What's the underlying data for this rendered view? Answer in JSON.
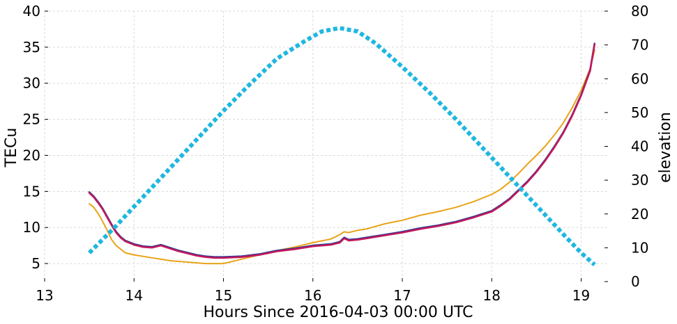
{
  "chart_data": {
    "type": "line",
    "xlabel": "Hours Since 2016-04-03 00:00 UTC",
    "ylabel": "TECu",
    "y2label": "elevation",
    "xlim": [
      13,
      19.3
    ],
    "ylim": [
      2.5,
      40
    ],
    "y2lim": [
      0,
      80
    ],
    "xticks": [
      13,
      14,
      15,
      16,
      17,
      18,
      19
    ],
    "yticks": [
      5,
      10,
      15,
      20,
      25,
      30,
      35,
      40
    ],
    "y2ticks": [
      0,
      10,
      20,
      30,
      40,
      50,
      60,
      70,
      80
    ],
    "grid": true,
    "series": [
      {
        "color": "#e8a317",
        "axis": "left",
        "style": "solid",
        "x": [
          13.5,
          13.55,
          13.6,
          13.65,
          13.7,
          13.75,
          13.8,
          13.85,
          13.9,
          14.0,
          14.1,
          14.2,
          14.3,
          14.4,
          14.5,
          14.6,
          14.7,
          14.8,
          14.9,
          15.0,
          15.2,
          15.4,
          15.6,
          15.8,
          16.0,
          16.2,
          16.3,
          16.35,
          16.4,
          16.5,
          16.6,
          16.8,
          17.0,
          17.2,
          17.4,
          17.6,
          17.8,
          18.0,
          18.1,
          18.2,
          18.3,
          18.4,
          18.5,
          18.6,
          18.7,
          18.8,
          18.9,
          19.0,
          19.1,
          19.15
        ],
        "y": [
          13.3,
          12.8,
          11.9,
          10.8,
          9.6,
          8.3,
          7.5,
          7.0,
          6.5,
          6.2,
          6.0,
          5.8,
          5.6,
          5.4,
          5.3,
          5.2,
          5.1,
          5.0,
          5.0,
          5.0,
          5.6,
          6.2,
          6.8,
          7.3,
          7.9,
          8.4,
          9.0,
          9.4,
          9.3,
          9.6,
          9.8,
          10.5,
          11.0,
          11.7,
          12.2,
          12.8,
          13.6,
          14.6,
          15.3,
          16.3,
          17.5,
          18.8,
          20.0,
          21.3,
          22.8,
          24.5,
          26.6,
          29.0,
          32.0,
          34.6
        ]
      },
      {
        "color": "#1f3a93",
        "axis": "left",
        "style": "solid",
        "x": [
          13.5,
          13.55,
          13.6,
          13.65,
          13.7,
          13.75,
          13.8,
          13.85,
          13.9,
          14.0,
          14.1,
          14.2,
          14.3,
          14.4,
          14.5,
          14.6,
          14.7,
          14.8,
          14.9,
          15.0,
          15.2,
          15.4,
          15.6,
          15.8,
          16.0,
          16.2,
          16.3,
          16.35,
          16.4,
          16.5,
          16.6,
          16.8,
          17.0,
          17.2,
          17.4,
          17.6,
          17.8,
          18.0,
          18.1,
          18.2,
          18.3,
          18.4,
          18.5,
          18.6,
          18.7,
          18.8,
          18.9,
          19.0,
          19.1,
          19.15
        ],
        "y": [
          14.9,
          14.3,
          13.5,
          12.6,
          11.5,
          10.4,
          9.4,
          8.7,
          8.2,
          7.7,
          7.4,
          7.3,
          7.6,
          7.2,
          6.8,
          6.5,
          6.2,
          6.0,
          5.9,
          5.9,
          6.0,
          6.3,
          6.8,
          7.1,
          7.5,
          7.7,
          8.0,
          8.6,
          8.3,
          8.4,
          8.6,
          9.0,
          9.4,
          9.9,
          10.3,
          10.8,
          11.5,
          12.3,
          13.1,
          14.0,
          15.2,
          16.4,
          17.8,
          19.4,
          21.2,
          23.2,
          25.6,
          28.4,
          31.8,
          35.5
        ]
      },
      {
        "color": "#c2185b",
        "axis": "left",
        "style": "solid",
        "x": [
          13.5,
          13.55,
          13.6,
          13.65,
          13.7,
          13.75,
          13.8,
          13.85,
          13.9,
          14.0,
          14.1,
          14.2,
          14.3,
          14.4,
          14.5,
          14.6,
          14.7,
          14.8,
          14.9,
          15.0,
          15.2,
          15.4,
          15.6,
          15.8,
          16.0,
          16.2,
          16.3,
          16.35,
          16.4,
          16.5,
          16.6,
          16.8,
          17.0,
          17.2,
          17.4,
          17.6,
          17.8,
          18.0,
          18.1,
          18.2,
          18.3,
          18.4,
          18.5,
          18.6,
          18.7,
          18.8,
          18.9,
          19.0,
          19.1,
          19.15
        ],
        "y": [
          14.8,
          14.2,
          13.4,
          12.5,
          11.4,
          10.3,
          9.3,
          8.6,
          8.1,
          7.6,
          7.3,
          7.2,
          7.5,
          7.1,
          6.7,
          6.4,
          6.1,
          5.9,
          5.8,
          5.8,
          5.9,
          6.2,
          6.7,
          7.0,
          7.4,
          7.6,
          7.9,
          8.5,
          8.2,
          8.3,
          8.5,
          8.9,
          9.3,
          9.8,
          10.2,
          10.7,
          11.4,
          12.2,
          13.0,
          13.9,
          15.1,
          16.3,
          17.7,
          19.3,
          21.1,
          23.1,
          25.5,
          28.3,
          31.7,
          35.4
        ]
      },
      {
        "color": "#1fb7e0",
        "axis": "right",
        "style": "dotted",
        "x": [
          13.5,
          13.8,
          14.1,
          14.4,
          14.7,
          15.0,
          15.3,
          15.6,
          15.9,
          16.1,
          16.3,
          16.5,
          16.7,
          17.0,
          17.3,
          17.6,
          17.9,
          18.2,
          18.5,
          18.8,
          19.0,
          19.15
        ],
        "y": [
          8.5,
          16.5,
          25.0,
          33.5,
          42.0,
          50.5,
          58.5,
          66.0,
          71.0,
          74.0,
          75.0,
          74.0,
          70.5,
          63.5,
          56.0,
          48.0,
          39.5,
          31.0,
          22.5,
          14.0,
          8.5,
          5.0
        ]
      }
    ]
  }
}
